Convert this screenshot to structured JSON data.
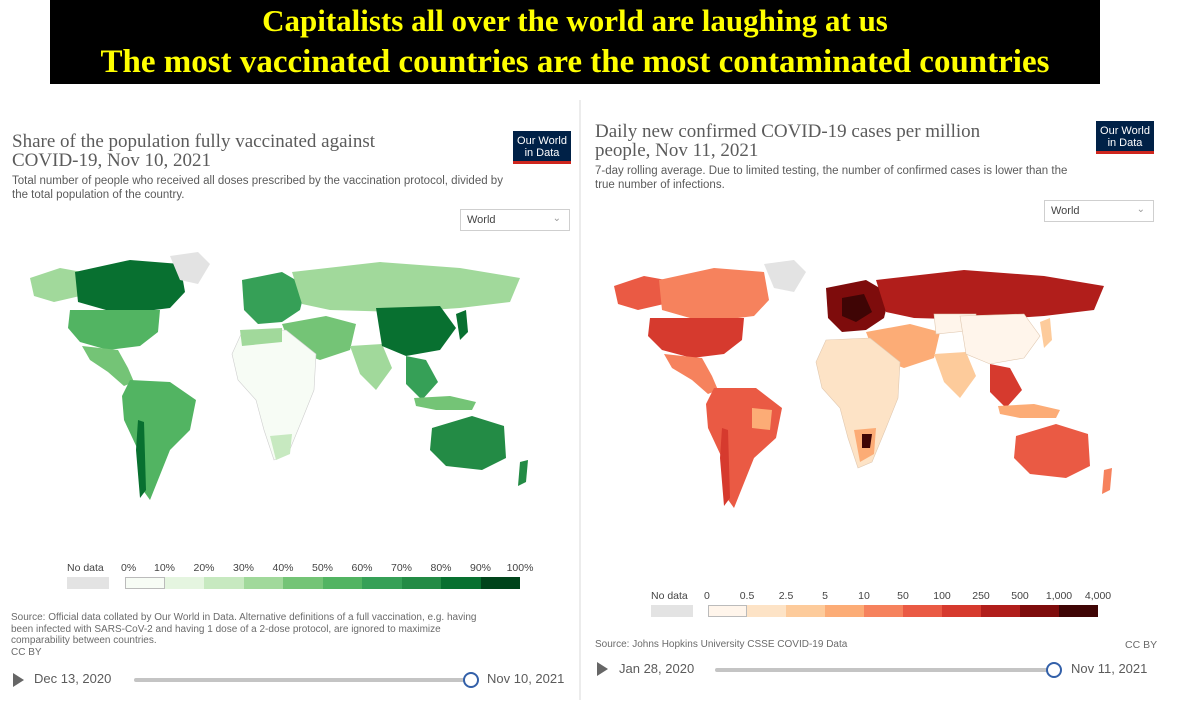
{
  "banner": {
    "line1": "Capitalists all over the world are laughing at us",
    "line2": "The most vaccinated countries are the most contaminated countries",
    "background": "#000000",
    "text_color": "#ffff00"
  },
  "left_panel": {
    "title_line1": "Share of the population fully vaccinated against",
    "title_line2": "COVID-19, Nov 10, 2021",
    "subtitle_line1": "Total number of people who received all doses prescribed by the vaccination protocol, divided by",
    "subtitle_line2": "the total population of the country.",
    "logo_line1": "Our World",
    "logo_line2": "in Data",
    "region_select": "World",
    "legend": {
      "no_data": "No data",
      "ticks": [
        "0%",
        "10%",
        "20%",
        "30%",
        "40%",
        "50%",
        "60%",
        "70%",
        "80%",
        "90%",
        "100%"
      ],
      "colors": [
        "#f7fcf5",
        "#e5f5e0",
        "#c7e9c0",
        "#a1d99b",
        "#74c476",
        "#52b462",
        "#36a057",
        "#238b45",
        "#087030",
        "#00441b"
      ]
    },
    "source_line1": "Source: Official data collated by Our World in Data. Alternative definitions of a full vaccination, e.g. having",
    "source_line2": "been infected with SARS-CoV-2 and having 1 dose of a 2-dose protocol, are ignored to maximize",
    "source_line3": "comparability between countries.",
    "license": "CC BY",
    "timeline_start": "Dec 13, 2020",
    "timeline_end": "Nov 10, 2021"
  },
  "right_panel": {
    "title_line1": "Daily new confirmed COVID-19 cases per million",
    "title_line2": "people, Nov 11, 2021",
    "subtitle_line1": "7-day rolling average. Due to limited testing, the number of confirmed cases is lower than the",
    "subtitle_line2": "true number of infections.",
    "logo_line1": "Our World",
    "logo_line2": "in Data",
    "region_select": "World",
    "legend": {
      "no_data": "No data",
      "ticks": [
        "0",
        "0.5",
        "2.5",
        "5",
        "10",
        "50",
        "100",
        "250",
        "500",
        "1,000",
        "4,000"
      ],
      "colors": [
        "#fff5eb",
        "#fde3c6",
        "#fdcb9b",
        "#fcac76",
        "#f6825d",
        "#ea5a44",
        "#d63a2e",
        "#b11e1b",
        "#7e0c0c",
        "#3f0505"
      ]
    },
    "source": "Source: Johns Hopkins University CSSE COVID-19 Data",
    "license": "CC BY",
    "timeline_start": "Jan 28, 2020",
    "timeline_end": "Nov 11, 2021"
  }
}
